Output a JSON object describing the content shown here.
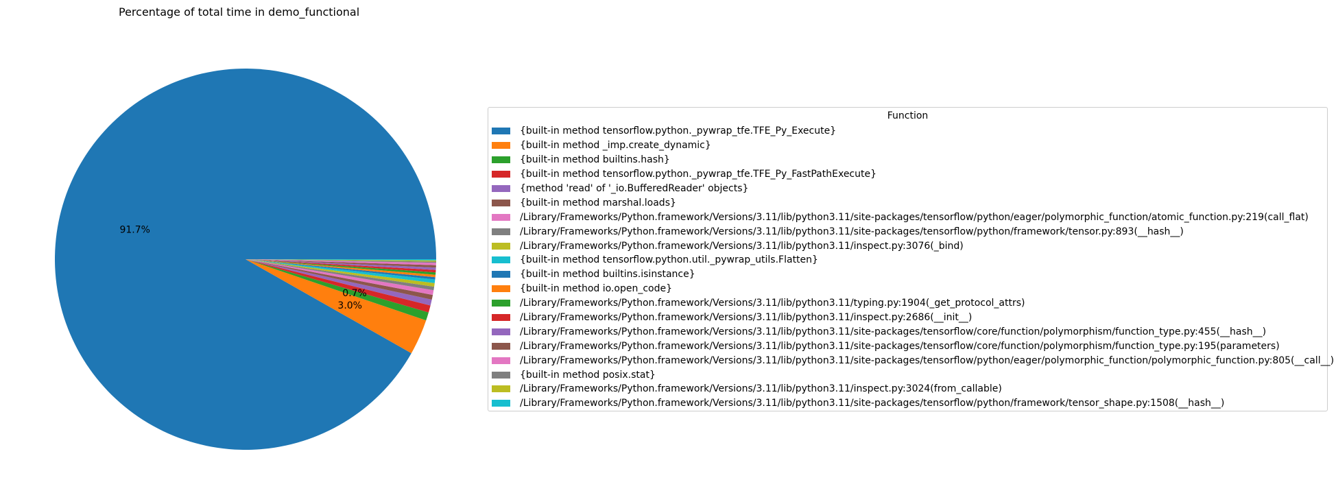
{
  "chart_data": {
    "type": "pie",
    "title": "Percentage of total time in demo_functional",
    "legend_title": "Function",
    "legend_placement": "right",
    "start_angle": 0,
    "slices": [
      {
        "label": "{built-in method tensorflow.python._pywrap_tfe.TFE_Py_Execute}",
        "value": 91.7,
        "pct_label": "91.7%",
        "color": "#1f77b4"
      },
      {
        "label": "{built-in method _imp.create_dynamic}",
        "value": 3.0,
        "pct_label": "3.0%",
        "color": "#ff7f0e"
      },
      {
        "label": "{built-in method builtins.hash}",
        "value": 0.7,
        "pct_label": "0.7%",
        "color": "#2ca02c"
      },
      {
        "label": "{built-in method tensorflow.python._pywrap_tfe.TFE_Py_FastPathExecute}",
        "value": 0.6,
        "pct_label": "",
        "color": "#d62728"
      },
      {
        "label": "{method 'read' of '_io.BufferedReader' objects}",
        "value": 0.5,
        "pct_label": "",
        "color": "#9467bd"
      },
      {
        "label": "{built-in method marshal.loads}",
        "value": 0.4,
        "pct_label": "",
        "color": "#8c564b"
      },
      {
        "label": "/Library/Frameworks/Python.framework/Versions/3.11/lib/python3.11/site-packages/tensorflow/python/eager/polymorphic_function/atomic_function.py:219(call_flat)",
        "value": 0.4,
        "pct_label": "",
        "color": "#e377c2"
      },
      {
        "label": "/Library/Frameworks/Python.framework/Versions/3.11/lib/python3.11/site-packages/tensorflow/python/framework/tensor.py:893(__hash__)",
        "value": 0.3,
        "pct_label": "",
        "color": "#7f7f7f"
      },
      {
        "label": "/Library/Frameworks/Python.framework/Versions/3.11/lib/python3.11/inspect.py:3076(_bind)",
        "value": 0.3,
        "pct_label": "",
        "color": "#bcbd22"
      },
      {
        "label": "{built-in method tensorflow.python.util._pywrap_utils.Flatten}",
        "value": 0.3,
        "pct_label": "",
        "color": "#17becf"
      },
      {
        "label": "{built-in method builtins.isinstance}",
        "value": 0.2,
        "pct_label": "",
        "color": "#1f77b4"
      },
      {
        "label": "{built-in method io.open_code}",
        "value": 0.2,
        "pct_label": "",
        "color": "#ff7f0e"
      },
      {
        "label": "/Library/Frameworks/Python.framework/Versions/3.11/lib/python3.11/typing.py:1904(_get_protocol_attrs)",
        "value": 0.2,
        "pct_label": "",
        "color": "#2ca02c"
      },
      {
        "label": "/Library/Frameworks/Python.framework/Versions/3.11/lib/python3.11/inspect.py:2686(__init__)",
        "value": 0.2,
        "pct_label": "",
        "color": "#d62728"
      },
      {
        "label": "/Library/Frameworks/Python.framework/Versions/3.11/lib/python3.11/site-packages/tensorflow/core/function/polymorphism/function_type.py:455(__hash__)",
        "value": 0.2,
        "pct_label": "",
        "color": "#9467bd"
      },
      {
        "label": "/Library/Frameworks/Python.framework/Versions/3.11/lib/python3.11/site-packages/tensorflow/core/function/polymorphism/function_type.py:195(parameters)",
        "value": 0.2,
        "pct_label": "",
        "color": "#8c564b"
      },
      {
        "label": "/Library/Frameworks/Python.framework/Versions/3.11/lib/python3.11/site-packages/tensorflow/python/eager/polymorphic_function/polymorphic_function.py:805(__call__)",
        "value": 0.2,
        "pct_label": "",
        "color": "#e377c2"
      },
      {
        "label": "{built-in method posix.stat}",
        "value": 0.1,
        "pct_label": "",
        "color": "#7f7f7f"
      },
      {
        "label": "/Library/Frameworks/Python.framework/Versions/3.11/lib/python3.11/inspect.py:3024(from_callable)",
        "value": 0.1,
        "pct_label": "",
        "color": "#bcbd22"
      },
      {
        "label": "/Library/Frameworks/Python.framework/Versions/3.11/lib/python3.11/site-packages/tensorflow/python/framework/tensor_shape.py:1508(__hash__)",
        "value": 0.1,
        "pct_label": "",
        "color": "#17becf"
      }
    ]
  }
}
